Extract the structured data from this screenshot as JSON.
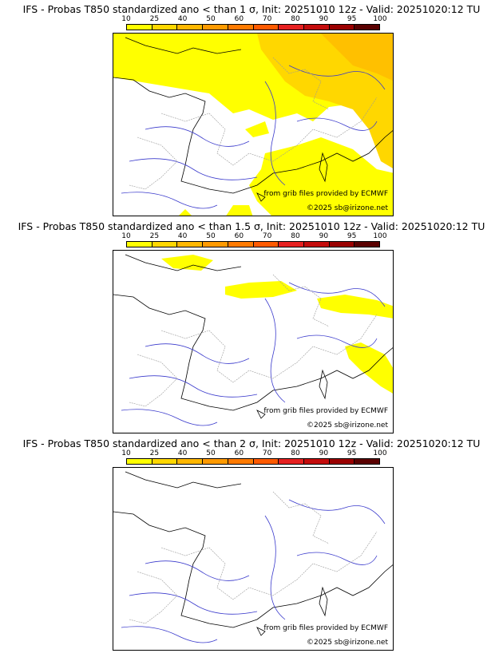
{
  "scale": {
    "ticks": [
      "10",
      "25",
      "40",
      "50",
      "60",
      "70",
      "80",
      "90",
      "95",
      "100"
    ],
    "colors": [
      "#ffff00",
      "#ffd700",
      "#ffb700",
      "#ff9a00",
      "#ff7a00",
      "#ff5a00",
      "#e62020",
      "#c40c0c",
      "#9a0000",
      "#5a0000"
    ]
  },
  "panels": [
    {
      "title": "IFS - Probas T850  standardized ano < than 1 σ, Init: 20251010 12z - Valid: 20251020:12 TU",
      "credit_source": "from grib files provided by ECMWF",
      "credit_copyright": "©2025 sb@irizone.net",
      "coverage": "extensive"
    },
    {
      "title": "IFS - Probas T850  standardized ano < than 1.5 σ, Init: 20251010 12z - Valid: 20251020:12 TU",
      "credit_source": "from grib files provided by ECMWF",
      "credit_copyright": "©2025 sb@irizone.net",
      "coverage": "partial"
    },
    {
      "title": "IFS - Probas T850  standardized ano < than 2 σ, Init: 20251010 12z - Valid: 20251020:12 TU",
      "credit_source": "from grib files provided by ECMWF",
      "credit_copyright": "©2025 sb@irizone.net",
      "coverage": "none"
    }
  ]
}
